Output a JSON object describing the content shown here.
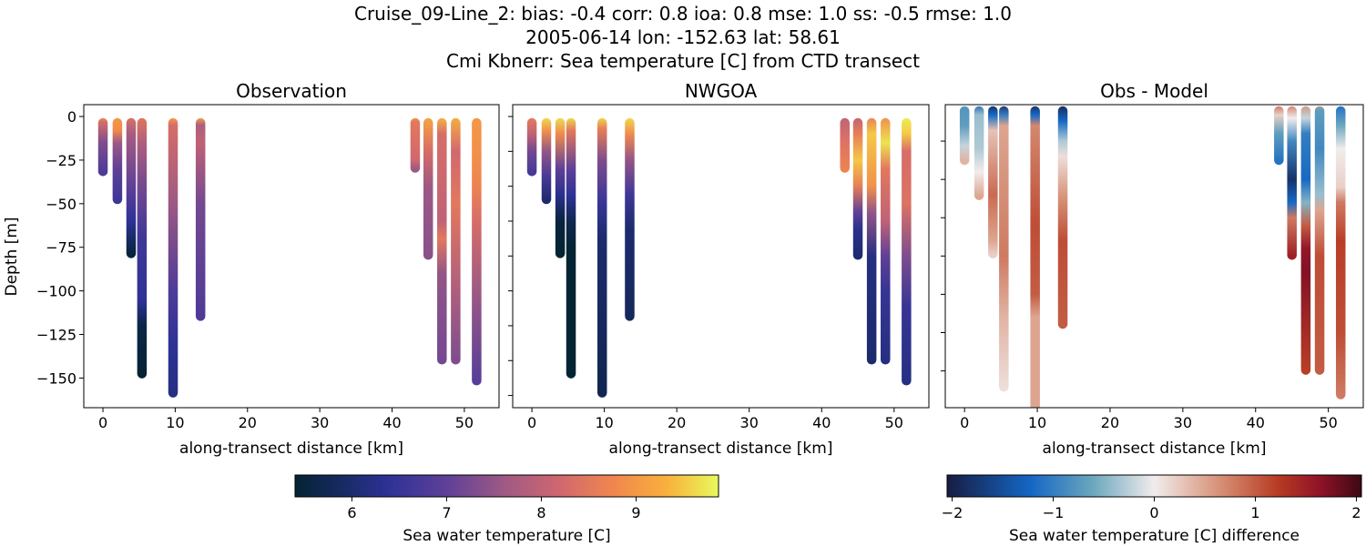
{
  "title_lines": [
    "Cruise_09-Line_2: bias: -0.4  corr: 0.8  ioa: 0.8  mse: 1.0  ss: -0.5  rmse: 1.0",
    "2005-06-14 lon: -152.63 lat: 58.61",
    "Cmi Kbnerr: Sea temperature [C] from CTD transect"
  ],
  "chart_data": [
    {
      "type": "scatter",
      "title": "Observation",
      "xlabel": "along-transect distance [km]",
      "ylabel": "Depth [m]",
      "xlim": [
        -2.65,
        54.8
      ],
      "ylim": [
        -167,
        6.8
      ],
      "xticks": [
        0,
        10,
        20,
        30,
        40,
        50
      ],
      "yticks": [
        0,
        -25,
        -50,
        -75,
        -100,
        -125,
        -150
      ],
      "ytick_labels": true,
      "colormap": "thermal",
      "clim": [
        5.4,
        9.87
      ],
      "profiles": [
        {
          "x": 0,
          "stops": [
            [
              0,
              9.0
            ],
            [
              -3,
              8.3
            ],
            [
              -15,
              7.3
            ],
            [
              -32,
              6.8
            ]
          ]
        },
        {
          "x": 2,
          "stops": [
            [
              0,
              9.0
            ],
            [
              -8,
              8.8
            ],
            [
              -15,
              7.6
            ],
            [
              -30,
              7.0
            ],
            [
              -48,
              6.6
            ]
          ]
        },
        {
          "x": 3.9,
          "stops": [
            [
              0,
              8.4
            ],
            [
              -10,
              7.7
            ],
            [
              -40,
              7.0
            ],
            [
              -60,
              6.4
            ],
            [
              -70,
              5.9
            ],
            [
              -79,
              5.5
            ]
          ]
        },
        {
          "x": 5.4,
          "stops": [
            [
              0,
              8.5
            ],
            [
              -15,
              7.8
            ],
            [
              -40,
              7.2
            ],
            [
              -70,
              6.6
            ],
            [
              -105,
              6.4
            ],
            [
              -120,
              5.6
            ],
            [
              -148,
              5.4
            ]
          ]
        },
        {
          "x": 9.7,
          "stops": [
            [
              0,
              9.2
            ],
            [
              -5,
              8.3
            ],
            [
              -50,
              7.6
            ],
            [
              -100,
              6.8
            ],
            [
              -130,
              6.4
            ],
            [
              -159,
              6.2
            ]
          ]
        },
        {
          "x": 13.5,
          "stops": [
            [
              0,
              9.3
            ],
            [
              -5,
              7.8
            ],
            [
              -15,
              8.0
            ],
            [
              -50,
              7.2
            ],
            [
              -115,
              6.8
            ]
          ]
        },
        {
          "x": 43.2,
          "stops": [
            [
              0,
              9.2
            ],
            [
              -3,
              8.5
            ],
            [
              -25,
              8.2
            ],
            [
              -30,
              7.6
            ]
          ]
        },
        {
          "x": 45,
          "stops": [
            [
              0,
              9.2
            ],
            [
              -20,
              8.3
            ],
            [
              -40,
              7.6
            ],
            [
              -80,
              7.4
            ]
          ]
        },
        {
          "x": 46.9,
          "stops": [
            [
              0,
              9.4
            ],
            [
              -10,
              8.3
            ],
            [
              -60,
              8.0
            ],
            [
              -70,
              8.5
            ],
            [
              -90,
              7.5
            ],
            [
              -140,
              7.2
            ]
          ]
        },
        {
          "x": 48.8,
          "stops": [
            [
              0,
              9.3
            ],
            [
              -20,
              8.2
            ],
            [
              -50,
              8.5
            ],
            [
              -100,
              7.8
            ],
            [
              -140,
              7.3
            ]
          ]
        },
        {
          "x": 51.7,
          "stops": [
            [
              0,
              9.0
            ],
            [
              -20,
              8.9
            ],
            [
              -40,
              8.7
            ],
            [
              -60,
              8.3
            ],
            [
              -100,
              7.6
            ],
            [
              -152,
              6.9
            ]
          ]
        }
      ]
    },
    {
      "type": "scatter",
      "title": "NWGOA",
      "xlabel": "along-transect distance [km]",
      "xlim": [
        -2.65,
        54.8
      ],
      "ylim": [
        -167,
        6.8
      ],
      "xticks": [
        0,
        10,
        20,
        30,
        40,
        50
      ],
      "yticks": [
        0,
        -20,
        -40,
        -60,
        -80,
        -100,
        -120,
        -140,
        -160
      ],
      "ytick_labels": false,
      "colormap": "thermal",
      "clim": [
        5.4,
        9.87
      ],
      "profiles": [
        {
          "x": 0,
          "stops": [
            [
              0,
              8.6
            ],
            [
              -10,
              8.0
            ],
            [
              -20,
              7.2
            ],
            [
              -32,
              6.7
            ]
          ]
        },
        {
          "x": 2,
          "stops": [
            [
              0,
              9.7
            ],
            [
              -8,
              8.9
            ],
            [
              -20,
              7.5
            ],
            [
              -35,
              6.7
            ],
            [
              -48,
              6.0
            ]
          ]
        },
        {
          "x": 3.9,
          "stops": [
            [
              0,
              9.7
            ],
            [
              -10,
              8.8
            ],
            [
              -30,
              7.0
            ],
            [
              -45,
              6.3
            ],
            [
              -60,
              5.5
            ],
            [
              -79,
              5.4
            ]
          ]
        },
        {
          "x": 5.4,
          "stops": [
            [
              0,
              9.7
            ],
            [
              -8,
              8.5
            ],
            [
              -30,
              7.0
            ],
            [
              -45,
              6.4
            ],
            [
              -60,
              5.7
            ],
            [
              -75,
              5.4
            ],
            [
              -148,
              5.4
            ]
          ]
        },
        {
          "x": 9.7,
          "stops": [
            [
              0,
              9.7
            ],
            [
              -7,
              8.6
            ],
            [
              -25,
              7.3
            ],
            [
              -50,
              6.5
            ],
            [
              -70,
              6.0
            ],
            [
              -159,
              5.7
            ]
          ]
        },
        {
          "x": 13.5,
          "stops": [
            [
              0,
              9.7
            ],
            [
              -10,
              8.8
            ],
            [
              -25,
              7.5
            ],
            [
              -45,
              6.6
            ],
            [
              -65,
              6.0
            ],
            [
              -115,
              5.8
            ]
          ]
        },
        {
          "x": 43.2,
          "stops": [
            [
              0,
              8.0
            ],
            [
              -15,
              8.4
            ],
            [
              -30,
              8.7
            ]
          ]
        },
        {
          "x": 45,
          "stops": [
            [
              0,
              8.0
            ],
            [
              -10,
              8.6
            ],
            [
              -25,
              9.5
            ],
            [
              -40,
              8.6
            ],
            [
              -55,
              7.0
            ],
            [
              -65,
              6.3
            ],
            [
              -80,
              6.0
            ]
          ]
        },
        {
          "x": 46.9,
          "stops": [
            [
              0,
              8.6
            ],
            [
              -10,
              9.5
            ],
            [
              -40,
              8.9
            ],
            [
              -55,
              7.5
            ],
            [
              -80,
              6.2
            ],
            [
              -140,
              6.0
            ]
          ]
        },
        {
          "x": 48.8,
          "stops": [
            [
              0,
              8.8
            ],
            [
              -15,
              9.7
            ],
            [
              -30,
              8.5
            ],
            [
              -60,
              8.0
            ],
            [
              -80,
              7.0
            ],
            [
              -100,
              6.5
            ],
            [
              -140,
              6.2
            ]
          ]
        },
        {
          "x": 51.7,
          "stops": [
            [
              0,
              9.8
            ],
            [
              -10,
              9.5
            ],
            [
              -20,
              8.3
            ],
            [
              -50,
              8.4
            ],
            [
              -80,
              7.3
            ],
            [
              -110,
              6.5
            ],
            [
              -152,
              6.2
            ]
          ]
        }
      ]
    },
    {
      "type": "scatter",
      "title": "Obs - Model",
      "xlabel": "along-transect distance [km]",
      "xlim": [
        -2.65,
        54.8
      ],
      "ylim": [
        -199,
        -1.2
      ],
      "xticks": [
        0,
        10,
        20,
        30,
        40,
        50
      ],
      "yticks": [
        -25,
        -50,
        -75,
        -100,
        -125,
        -150,
        -175
      ],
      "ytick_labels": false,
      "colormap": "balance",
      "clim": [
        -2.05,
        2.05
      ],
      "profiles": [
        {
          "x": 0,
          "stops": [
            [
              0,
              -0.8
            ],
            [
              -15,
              -0.7
            ],
            [
              -28,
              -0.2
            ],
            [
              -38,
              0.4
            ]
          ]
        },
        {
          "x": 2,
          "stops": [
            [
              0,
              -1.4
            ],
            [
              -8,
              -0.4
            ],
            [
              -30,
              -0.3
            ],
            [
              -45,
              0.0
            ],
            [
              -61,
              0.5
            ]
          ]
        },
        {
          "x": 3.9,
          "stops": [
            [
              0,
              -2
            ],
            [
              -8,
              -1.2
            ],
            [
              -18,
              0.3
            ],
            [
              -60,
              0.9
            ],
            [
              -90,
              0.5
            ],
            [
              -99,
              0.2
            ]
          ]
        },
        {
          "x": 5.4,
          "stops": [
            [
              0,
              -2
            ],
            [
              -8,
              -1
            ],
            [
              -15,
              0.5
            ],
            [
              -100,
              0.8
            ],
            [
              -140,
              0.4
            ],
            [
              -186,
              0.1
            ]
          ]
        },
        {
          "x": 9.7,
          "stops": [
            [
              0,
              -2
            ],
            [
              -8,
              -1.2
            ],
            [
              -15,
              0.7
            ],
            [
              -80,
              1.1
            ],
            [
              -125,
              1.0
            ],
            [
              -140,
              0.5
            ],
            [
              -205,
              0.5
            ]
          ]
        },
        {
          "x": 13.5,
          "stops": [
            [
              0,
              -2
            ],
            [
              -12,
              -1.2
            ],
            [
              -25,
              -0.3
            ],
            [
              -35,
              0.1
            ],
            [
              -60,
              0.6
            ],
            [
              -90,
              1.1
            ],
            [
              -145,
              1.0
            ]
          ]
        },
        {
          "x": 43.2,
          "stops": [
            [
              0,
              1.0
            ],
            [
              -8,
              0.2
            ],
            [
              -20,
              -0.7
            ],
            [
              -38,
              -1.1
            ]
          ]
        },
        {
          "x": 45,
          "stops": [
            [
              0,
              0.9
            ],
            [
              -10,
              0.0
            ],
            [
              -25,
              -0.9
            ],
            [
              -50,
              -1.8
            ],
            [
              -65,
              -1.2
            ],
            [
              -75,
              0.8
            ],
            [
              -100,
              1.5
            ]
          ]
        },
        {
          "x": 46.9,
          "stops": [
            [
              0,
              0.7
            ],
            [
              -10,
              -0.2
            ],
            [
              -20,
              -1.0
            ],
            [
              -50,
              -1.2
            ],
            [
              -65,
              -0.5
            ],
            [
              -80,
              1.0
            ],
            [
              -95,
              1.6
            ],
            [
              -110,
              1.7
            ],
            [
              -175,
              1.2
            ]
          ]
        },
        {
          "x": 48.8,
          "stops": [
            [
              0,
              0.6
            ],
            [
              -5,
              -0.7
            ],
            [
              -30,
              -0.9
            ],
            [
              -60,
              -0.4
            ],
            [
              -70,
              0.5
            ],
            [
              -100,
              1.1
            ],
            [
              -175,
              1.0
            ]
          ]
        },
        {
          "x": 51.7,
          "stops": [
            [
              0,
              -1.2
            ],
            [
              -15,
              -0.6
            ],
            [
              -30,
              0.0
            ],
            [
              -55,
              0.2
            ],
            [
              -65,
              0.8
            ],
            [
              -90,
              1.2
            ],
            [
              -150,
              1.1
            ],
            [
              -191,
              0.8
            ]
          ]
        }
      ]
    }
  ],
  "colorbars": [
    {
      "label": "Sea water temperature [C]",
      "colormap": "thermal",
      "range": [
        5.4,
        9.87
      ],
      "ticks": [
        6,
        7,
        8,
        9
      ],
      "tick_labels": [
        "6",
        "7",
        "8",
        "9"
      ]
    },
    {
      "label": "Sea water temperature [C] difference",
      "colormap": "balance",
      "range": [
        -2.05,
        2.05
      ],
      "ticks": [
        -2,
        -1,
        0,
        1,
        2
      ],
      "tick_labels": [
        "−2",
        "−1",
        "0",
        "1",
        "2"
      ]
    }
  ],
  "colormaps": {
    "thermal": [
      [
        0,
        "#042333"
      ],
      [
        0.13,
        "#1b2b6b"
      ],
      [
        0.22,
        "#2d3296"
      ],
      [
        0.35,
        "#5b3f98"
      ],
      [
        0.5,
        "#a15a83"
      ],
      [
        0.62,
        "#cf6670"
      ],
      [
        0.75,
        "#f0864e"
      ],
      [
        0.88,
        "#f9b13d"
      ],
      [
        1,
        "#e8fa5b"
      ]
    ],
    "balance": [
      [
        0,
        "#181c43"
      ],
      [
        0.2,
        "#1366c4"
      ],
      [
        0.35,
        "#6aa6bd"
      ],
      [
        0.5,
        "#f1ecec"
      ],
      [
        0.65,
        "#d8957b"
      ],
      [
        0.8,
        "#b73a23"
      ],
      [
        0.9,
        "#8f1228"
      ],
      [
        1,
        "#3c0912"
      ]
    ]
  }
}
